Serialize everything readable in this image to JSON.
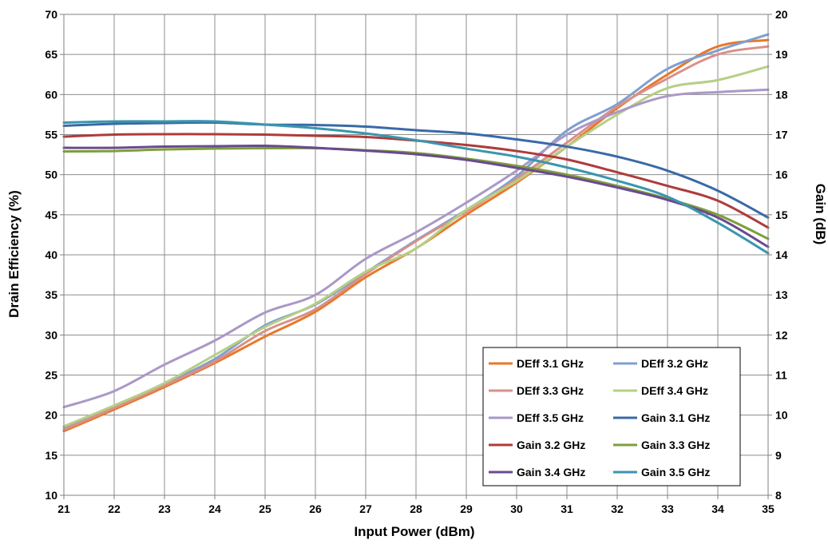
{
  "chart_data": {
    "type": "line",
    "xlabel": "Input Power (dBm)",
    "ylabel": "Drain Efficiency (%)",
    "y2label": "Gain (dB)",
    "xlim": [
      21,
      35
    ],
    "ylim": [
      10,
      70
    ],
    "y2lim": [
      8,
      20
    ],
    "grid": true,
    "legend_position": "bottom-right",
    "x_ticks": [
      "21",
      "22",
      "23",
      "24",
      "25",
      "26",
      "27",
      "28",
      "29",
      "30",
      "31",
      "32",
      "33",
      "34",
      "35"
    ],
    "y_ticks": [
      "10",
      "15",
      "20",
      "25",
      "30",
      "35",
      "40",
      "45",
      "50",
      "55",
      "60",
      "65",
      "70"
    ],
    "y2_ticks": [
      "8",
      "9",
      "10",
      "11",
      "12",
      "13",
      "14",
      "15",
      "16",
      "17",
      "18",
      "19",
      "20"
    ],
    "x": [
      21,
      22,
      23,
      24,
      25,
      26,
      27,
      28,
      29,
      30,
      31,
      32,
      33,
      34,
      35
    ],
    "series": [
      {
        "name": "DEff 3.1 GHz",
        "axis": "left",
        "color": "#E8782A",
        "values": [
          18.0,
          20.7,
          23.5,
          26.5,
          29.8,
          32.9,
          37.2,
          40.8,
          45.0,
          49.0,
          53.5,
          58.3,
          62.5,
          66.0,
          66.8
        ]
      },
      {
        "name": "DEff 3.2 GHz",
        "axis": "left",
        "color": "#7F9FCF",
        "values": [
          18.5,
          21.1,
          23.9,
          27.0,
          31.2,
          33.8,
          37.8,
          41.8,
          45.6,
          49.8,
          55.5,
          58.8,
          63.2,
          65.5,
          67.5
        ]
      },
      {
        "name": "DEff 3.3 GHz",
        "axis": "left",
        "color": "#D9908A",
        "values": [
          18.2,
          20.9,
          23.7,
          26.7,
          30.5,
          33.2,
          37.6,
          41.7,
          45.4,
          49.5,
          54.0,
          58.5,
          62.0,
          65.0,
          66.0
        ]
      },
      {
        "name": "DEff 3.4 GHz",
        "axis": "left",
        "color": "#B5CF86",
        "values": [
          18.6,
          21.2,
          24.0,
          27.5,
          31.0,
          33.9,
          37.9,
          40.8,
          45.6,
          49.2,
          53.5,
          57.5,
          60.8,
          61.8,
          63.5
        ]
      },
      {
        "name": "DEff 3.5 GHz",
        "axis": "left",
        "color": "#AA98C7",
        "values": [
          21.0,
          23.0,
          26.3,
          29.3,
          32.8,
          35.0,
          39.5,
          42.8,
          46.5,
          50.5,
          55.0,
          57.8,
          59.8,
          60.3,
          60.6
        ]
      },
      {
        "name": "Gain 3.1 GHz",
        "axis": "right",
        "color": "#3A6AA6",
        "values": [
          17.22,
          17.27,
          17.29,
          17.3,
          17.25,
          17.24,
          17.2,
          17.11,
          17.03,
          16.88,
          16.7,
          16.45,
          16.1,
          15.6,
          14.93
        ]
      },
      {
        "name": "Gain 3.2 GHz",
        "axis": "right",
        "color": "#AF3B3B",
        "values": [
          16.95,
          17.0,
          17.01,
          17.01,
          17.0,
          16.97,
          16.94,
          16.85,
          16.74,
          16.59,
          16.38,
          16.06,
          15.72,
          15.35,
          14.68
        ]
      },
      {
        "name": "Gain 3.3 GHz",
        "axis": "right",
        "color": "#7E9E3A",
        "values": [
          16.58,
          16.59,
          16.63,
          16.65,
          16.66,
          16.66,
          16.61,
          16.54,
          16.4,
          16.22,
          16.0,
          15.72,
          15.4,
          15.0,
          14.4
        ]
      },
      {
        "name": "Gain 3.4 GHz",
        "axis": "right",
        "color": "#6A4A90",
        "values": [
          16.67,
          16.67,
          16.7,
          16.71,
          16.72,
          16.67,
          16.6,
          16.51,
          16.37,
          16.17,
          15.95,
          15.68,
          15.37,
          14.93,
          14.2
        ]
      },
      {
        "name": "Gain 3.5 GHz",
        "axis": "right",
        "color": "#3A96AE",
        "values": [
          17.3,
          17.33,
          17.33,
          17.33,
          17.25,
          17.16,
          17.03,
          16.86,
          16.65,
          16.45,
          16.18,
          15.85,
          15.45,
          14.8,
          14.04
        ]
      }
    ]
  }
}
